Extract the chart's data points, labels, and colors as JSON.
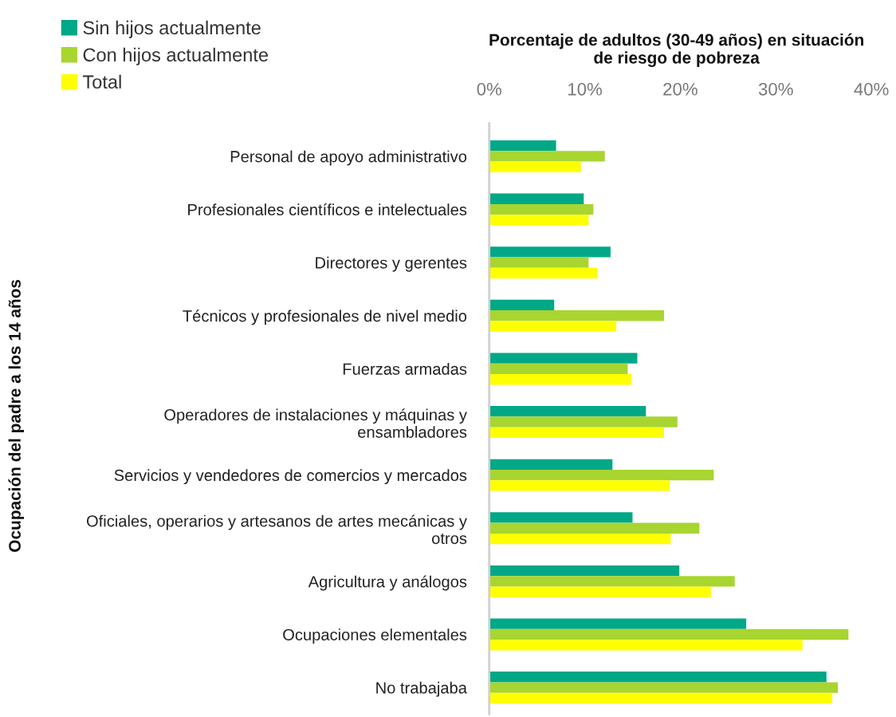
{
  "chart_data": {
    "type": "bar",
    "orientation": "horizontal",
    "title": "Porcentaje de adultos (30-49 años) en situación\nde riesgo de pobreza",
    "ylabel": "Ocupación del padre a los 14 años",
    "categories": [
      "Personal de apoyo administrativo",
      "Profesionales científicos e intelectuales",
      "Directores y gerentes",
      "Técnicos y profesionales de nivel medio",
      "Fuerzas armadas",
      "Operadores de instalaciones y máquinas y\nensambladores",
      "Servicios y vendedores de comercios y mercados",
      "Oficiales, operarios y artesanos de artes mecánicas y\notros",
      "Agricultura y análogos",
      "Ocupaciones elementales",
      "No trabajaba"
    ],
    "series": [
      {
        "name": "Sin hijos actualmente",
        "color": "#00a887",
        "values": [
          7.0,
          9.9,
          12.7,
          6.8,
          15.5,
          16.4,
          12.9,
          15.0,
          19.9,
          26.9,
          35.3
        ]
      },
      {
        "name": "Con hijos actualmente",
        "color": "#a8d530",
        "values": [
          12.1,
          10.9,
          10.4,
          18.3,
          14.5,
          19.7,
          23.5,
          22.0,
          25.7,
          37.6,
          36.5
        ]
      },
      {
        "name": "Total",
        "color": "#ffff00",
        "values": [
          9.6,
          10.4,
          11.3,
          13.3,
          14.9,
          18.3,
          18.9,
          19.0,
          23.2,
          32.8,
          35.9
        ]
      }
    ],
    "xlim": [
      0,
      40
    ],
    "xticks": [
      {
        "value": 0,
        "label": "0%"
      },
      {
        "value": 10,
        "label": "10%"
      },
      {
        "value": 20,
        "label": "20%"
      },
      {
        "value": 30,
        "label": "30%"
      },
      {
        "value": 40,
        "label": "40%"
      }
    ],
    "grid": false,
    "legend": "top left"
  }
}
